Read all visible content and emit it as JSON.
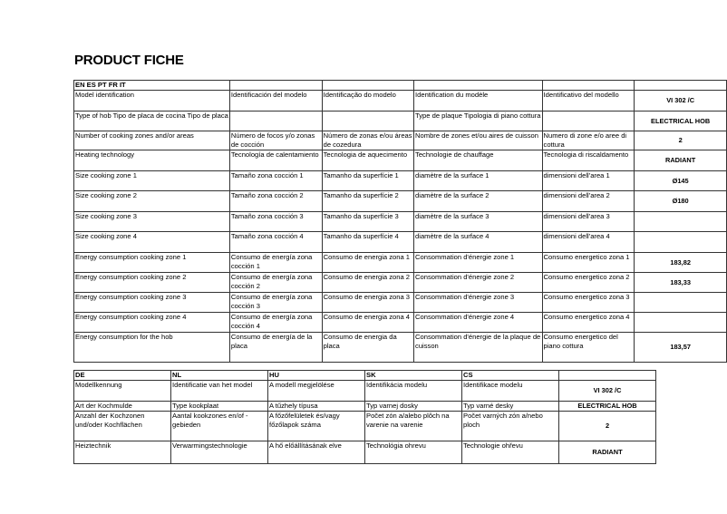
{
  "title": "PRODUCT FICHE",
  "table1": {
    "header": [
      "EN ES PT FR IT",
      "",
      "",
      "",
      "",
      ""
    ],
    "rows": [
      [
        "Model identification",
        "Identificación del modelo",
        "Identificação do modelo",
        "Identification du modèle",
        "Identificativo del modello",
        "VI 302 /C"
      ],
      [
        "Type of hob Tipo de placa de cocina Tipo de placa",
        "",
        "",
        "Type de plaque Tipologia di piano cottura",
        "",
        "ELECTRICAL HOB"
      ],
      [
        "Number of cooking zones and/or areas",
        "Número de focos y/o zonas de cocción",
        "Número de zonas e/ou áreas de cozedura",
        "Nombre de zones et/ou aires de cuisson",
        "Numero di zone e/o aree di cottura",
        "2"
      ],
      [
        "Heating technology",
        "Tecnología de calentamiento",
        "Tecnologia de aquecimento",
        "Technologie de chauffage",
        "Tecnologia di riscaldamento",
        "RADIANT"
      ],
      [
        "Size cooking zone 1",
        "Tamaño zona cocción 1",
        "Tamanho da superfície 1",
        "diamètre de la surface 1",
        "dimensioni dell'area 1",
        "Ø145"
      ],
      [
        "Size cooking zone 2",
        "Tamaño zona cocción 2",
        "Tamanho da superfície 2",
        "diamètre de la surface 2",
        "dimensioni dell'area 2",
        "Ø180"
      ],
      [
        "Size cooking zone 3",
        "Tamaño zona cocción 3",
        "Tamanho da superfície 3",
        "diamètre de la surface 3",
        "dimensioni dell'area 3",
        ""
      ],
      [
        "Size cooking zone 4",
        "Tamaño zona cocción 4",
        "Tamanho da superfície 4",
        "diamètre de la surface 4",
        "dimensioni dell'area 4",
        ""
      ],
      [
        "Energy consumption cooking zone 1",
        "Consumo de energía zona cocción 1",
        "Consumo de energia zona 1",
        "Consommation d'énergie zone 1",
        "Consumo energetico zona 1",
        "183,82"
      ],
      [
        "Energy consumption cooking zone 2",
        "Consumo de energía zona cocción 2",
        "Consumo de energia zona 2",
        "Consommation d'énergie zone 2",
        "Consumo energetico zona 2",
        "183,33"
      ],
      [
        "Energy consumption cooking zone 3",
        "Consumo de energía zona cocción 3",
        "Consumo de energia zona 3",
        "Consommation d'énergie zone 3",
        "Consumo energetico zona 3",
        ""
      ],
      [
        "Energy consumption cooking zone 4",
        "Consumo de energía zona cocción 4",
        "Consumo de energia zona 4",
        "Consommation d'énergie zone 4",
        "Consumo energetico zona 4",
        ""
      ],
      [
        "Energy consumption for the hob",
        "Consumo de energía de la placa",
        "Consumo de energia da placa",
        "Consommation d'énergie de la plaque de cuisson",
        "Consumo energetico del piano cottura",
        "183,57"
      ]
    ]
  },
  "table2": {
    "header": [
      "DE",
      "NL",
      "HU",
      "SK",
      "CS",
      ""
    ],
    "rows": [
      [
        "Modellkennung",
        "Identificatie van het model",
        "A modell megjelölése",
        "Identifikácia modelu",
        "Identifikace modelu",
        "VI 302 /C"
      ],
      [
        "Art der Kochmulde",
        "Type kookplaat",
        "A tűzhely típusa",
        "Typ varnej dosky",
        "Typ varné desky",
        "ELECTRICAL HOB"
      ],
      [
        "Anzahl der Kochzonen und/oder Kochflächen",
        "Aantal kookzones en/of -gebieden",
        "A főzőfelületek és/vagy főzőlapok száma",
        "Počet zón a/alebo plôch na varenie na varenie",
        "Počet varných zón a/nebo ploch",
        "2"
      ],
      [
        "Heiztechnik",
        "Verwarmingstechnologie",
        "A hő előállításának elve",
        "Technológia ohrevu",
        "Technologie ohřevu",
        "RADIANT"
      ]
    ]
  }
}
